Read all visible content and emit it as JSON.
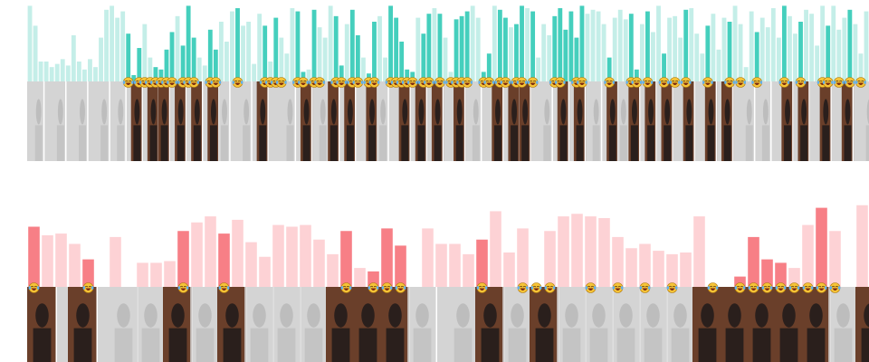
{
  "colors": {
    "top_bar": "#45cfbd",
    "top_bar_faded": "#c4eee8",
    "bottom_bar": "#f77f86",
    "bottom_bar_faded": "#fdd2d5",
    "emoji_face": "#f6c437",
    "film_warm": "#6a3f2a",
    "film_dark": "#2a1f1c",
    "film_faded": "#d4d4d4",
    "background": "#ffffff"
  },
  "icons": {
    "marker": "laughing-face-emoji-icon",
    "thumbnail": "video-frame-thumbnail"
  },
  "chart_data": [
    {
      "type": "bar",
      "panel": "top",
      "values": [
        0.95,
        0.7,
        0.25,
        0.25,
        0.18,
        0.22,
        0.28,
        0.2,
        0.58,
        0.25,
        0.15,
        0.28,
        0.18,
        0.55,
        0.9,
        0.95,
        0.8,
        0.88,
        0.6,
        0.08,
        0.42,
        0.72,
        0.3,
        0.18,
        0.15,
        0.4,
        0.62,
        0.82,
        0.45,
        0.95,
        0.55,
        0.3,
        0.2,
        0.65,
        0.4,
        0.75,
        0.5,
        0.88,
        0.92,
        0.7,
        0.75,
        0.22,
        0.85,
        0.7,
        0.25,
        0.8,
        0.55,
        0.35,
        0.92,
        0.88,
        0.12,
        0.15,
        0.9,
        0.68,
        0.55,
        0.95,
        0.82,
        0.2,
        0.72,
        0.9,
        0.58,
        0.3,
        0.1,
        0.75,
        0.82,
        0.3,
        0.95,
        0.8,
        0.5,
        0.15,
        0.12,
        0.8,
        0.6,
        0.85,
        0.92,
        0.85,
        0.55,
        0.12,
        0.78,
        0.82,
        0.88,
        0.95,
        0.8,
        0.12,
        0.35,
        0.95,
        0.9,
        0.8,
        0.68,
        0.72,
        0.95,
        0.92,
        0.88,
        0.3,
        0.72,
        0.58,
        0.82,
        0.92,
        0.65,
        0.88,
        0.55,
        0.95,
        0.85,
        0.9,
        0.88,
        0.72,
        0.3,
        0.8,
        0.9,
        0.78,
        0.85,
        0.15,
        0.72,
        0.88,
        0.62,
        0.95,
        0.35,
        0.8,
        0.82,
        0.55,
        0.9,
        0.92,
        0.6,
        0.35,
        0.7,
        0.85,
        0.4,
        0.8,
        0.75,
        0.95,
        0.72,
        0.18,
        0.88,
        0.62,
        0.8,
        0.68,
        0.92,
        0.55,
        0.95,
        0.82,
        0.6,
        0.75,
        0.9,
        0.85,
        0.45,
        0.95,
        0.7,
        0.95,
        0.65,
        0.8,
        0.9,
        0.72,
        0.35,
        0.88
      ],
      "highlighted": [
        18,
        19,
        20,
        23,
        24,
        25,
        26,
        28,
        29,
        30,
        33,
        34,
        38,
        43,
        45,
        49,
        50,
        52,
        56,
        57,
        59,
        60,
        62,
        63,
        66,
        67,
        68,
        69,
        70,
        72,
        73,
        75,
        78,
        79,
        80,
        83,
        84,
        86,
        87,
        89,
        90,
        92,
        96,
        97,
        98,
        99,
        100,
        101,
        106,
        110,
        111,
        113,
        116,
        120,
        124,
        128,
        133,
        138,
        141,
        146,
        150,
        155
      ],
      "markers": [
        18,
        20,
        21,
        22,
        23,
        24,
        25,
        26,
        28,
        29,
        30,
        33,
        34,
        38,
        43,
        44,
        45,
        46,
        49,
        50,
        52,
        53,
        56,
        57,
        59,
        60,
        62,
        63,
        66,
        67,
        68,
        69,
        70,
        72,
        73,
        75,
        77,
        78,
        79,
        80,
        83,
        84,
        86,
        87,
        89,
        90,
        92,
        96,
        97,
        100,
        101,
        106,
        110,
        111,
        113,
        116,
        118,
        120,
        124,
        128,
        130,
        133,
        138,
        141,
        145,
        146,
        148,
        150,
        152,
        155
      ],
      "thumbnails": [
        1,
        5,
        9,
        13,
        16,
        19,
        22,
        24,
        27,
        30,
        33,
        35,
        39,
        42,
        47,
        50,
        53,
        55,
        58,
        62,
        64,
        68,
        71,
        74,
        78,
        81,
        85,
        88,
        90,
        94,
        97,
        100,
        103,
        106,
        108,
        110,
        113,
        116,
        120,
        124,
        127,
        131,
        134,
        138,
        141,
        145,
        149,
        153,
        157
      ]
    },
    {
      "type": "bar",
      "panel": "bottom",
      "values": [
        0.7,
        0.6,
        0.62,
        0.5,
        0.32,
        0.0,
        0.58,
        0.0,
        0.28,
        0.28,
        0.3,
        0.65,
        0.75,
        0.82,
        0.62,
        0.78,
        0.52,
        0.35,
        0.72,
        0.7,
        0.72,
        0.55,
        0.38,
        0.65,
        0.22,
        0.18,
        0.68,
        0.48,
        0.0,
        0.68,
        0.5,
        0.5,
        0.38,
        0.55,
        0.88,
        0.4,
        0.68,
        0.0,
        0.65,
        0.82,
        0.85,
        0.82,
        0.8,
        0.58,
        0.45,
        0.5,
        0.42,
        0.38,
        0.4,
        0.82,
        0.0,
        0.0,
        0.12,
        0.58,
        0.32,
        0.28,
        0.22,
        0.72,
        0.92,
        0.65,
        0.0,
        0.95
      ],
      "highlighted": [
        0,
        4,
        11,
        14,
        23,
        25,
        26,
        27,
        33,
        37,
        50,
        52,
        53,
        54,
        55,
        58,
        62
      ],
      "markers": [
        0,
        4,
        11,
        14,
        23,
        25,
        26,
        27,
        33,
        36,
        37,
        38,
        41,
        43,
        45,
        47,
        50,
        52,
        53,
        54,
        55,
        56,
        57,
        58,
        59,
        62
      ],
      "thumbnails": [
        0,
        3,
        6,
        8,
        10,
        12,
        14,
        16,
        18,
        20,
        22,
        24,
        26,
        28,
        31,
        33,
        35,
        37,
        39,
        41,
        43,
        45,
        47,
        49,
        51,
        53,
        55,
        57,
        59,
        61
      ]
    }
  ]
}
